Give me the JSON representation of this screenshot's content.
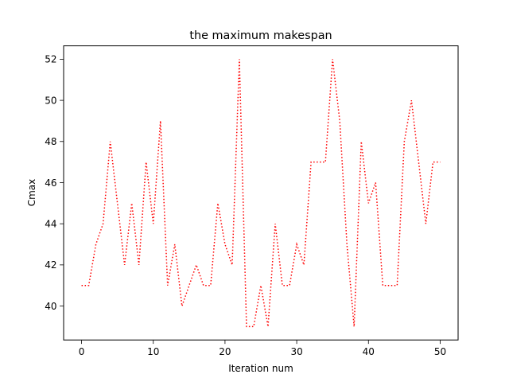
{
  "chart_data": {
    "type": "line",
    "title": "the maximum makespan",
    "xlabel": "Iteration num",
    "ylabel": "Cmax",
    "xlim": [
      -2.5,
      52.5
    ],
    "ylim": [
      38.35,
      52.65
    ],
    "xticks": [
      0,
      10,
      20,
      30,
      40,
      50
    ],
    "yticks": [
      40,
      42,
      44,
      46,
      48,
      50,
      52
    ],
    "grid": false,
    "legend": "none",
    "series": [
      {
        "color": "#ff0000",
        "linestyle": "dotted",
        "x": [
          0,
          1,
          2,
          3,
          4,
          5,
          6,
          7,
          8,
          9,
          10,
          11,
          12,
          13,
          14,
          15,
          16,
          17,
          18,
          19,
          20,
          21,
          22,
          23,
          24,
          25,
          26,
          27,
          28,
          29,
          30,
          31,
          32,
          33,
          34,
          35,
          36,
          37,
          38,
          39,
          40,
          41,
          42,
          43,
          44,
          45,
          46,
          47,
          48,
          49,
          50
        ],
        "y": [
          41,
          41,
          43,
          44,
          48,
          45,
          42,
          45,
          42,
          47,
          44,
          49,
          41,
          43,
          40,
          41,
          42,
          41,
          41,
          45,
          43,
          42,
          52,
          39,
          39,
          41,
          39,
          44,
          41,
          41,
          43,
          42,
          47,
          47,
          47,
          52,
          49,
          43,
          39,
          48,
          45,
          46,
          41,
          41,
          41,
          48,
          50,
          47,
          44,
          47,
          47
        ]
      }
    ]
  }
}
